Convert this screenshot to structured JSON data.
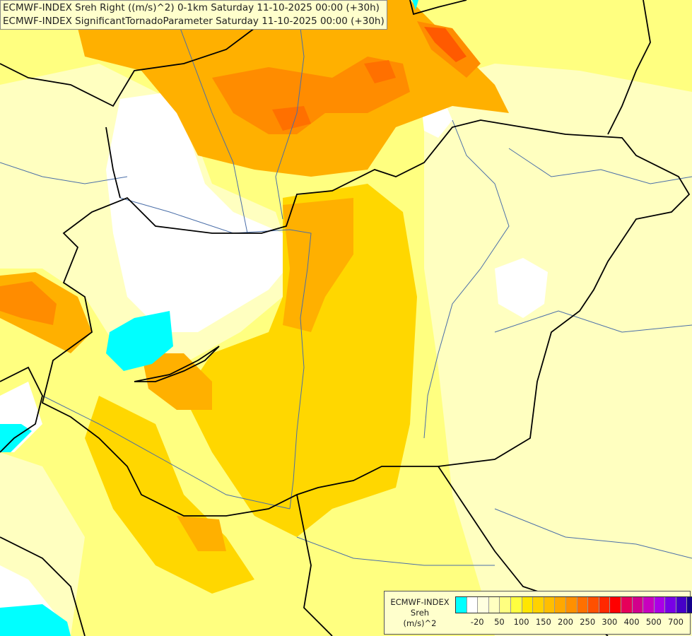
{
  "titles": {
    "line1": "ECMWF-INDEX Sreh Right ((m/s)^2) 0-1km Saturday 11-10-2025 00:00 (+30h)",
    "line2": "ECMWF-INDEX SignificantTornadoParameter Saturday 11-10-2025 00:00 (+30h)"
  },
  "legend": {
    "label_line1": "ECMWF-INDEX",
    "label_line2": "Sreh",
    "label_line3": "(m/s)^2",
    "tick_labels": [
      "-20",
      "50",
      "100",
      "150",
      "200",
      "250",
      "300",
      "400",
      "500",
      "700"
    ],
    "colors": [
      "#00ffff",
      "#ffffff",
      "#ffffe0",
      "#ffffc0",
      "#ffff80",
      "#ffff40",
      "#ffe600",
      "#ffd200",
      "#ffbe00",
      "#ffa800",
      "#ff9000",
      "#ff7000",
      "#ff5000",
      "#ff2800",
      "#ff0000",
      "#e6005a",
      "#d2008c",
      "#c800be",
      "#aa00e6",
      "#7800e6",
      "#4600c8",
      "#14008c"
    ]
  },
  "colors": {
    "ocean_white": "#ffffff",
    "pale_yellow": "#ffffc0",
    "light_yellow": "#ffff80",
    "yellow": "#ffee00",
    "gold": "#ffd700",
    "orange": "#ffb000",
    "dark_orange": "#ff8c00",
    "red_orange": "#ff5a00",
    "cyan": "#00ffff",
    "border": "#000000",
    "river": "#4a6ea8"
  }
}
